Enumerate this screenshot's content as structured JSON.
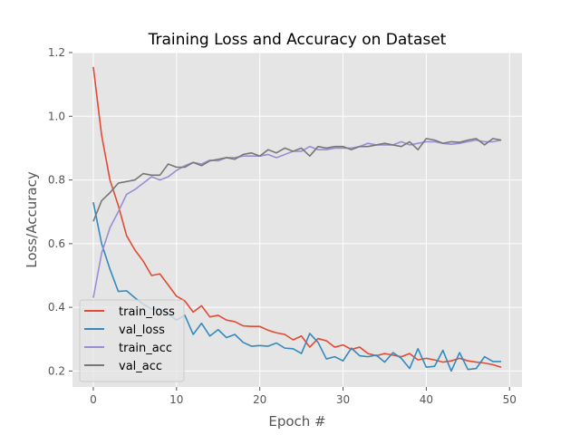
{
  "chart_data": {
    "type": "line",
    "title": "Training Loss and Accuracy on Dataset",
    "xlabel": "Epoch #",
    "ylabel": "Loss/Accuracy",
    "xlim": [
      -2.5,
      51.5
    ],
    "ylim": [
      0.15,
      1.2
    ],
    "xticks": [
      0,
      10,
      20,
      30,
      40,
      50
    ],
    "yticks": [
      0.2,
      0.4,
      0.6,
      0.8,
      1.0,
      1.2
    ],
    "xtick_labels": [
      "0",
      "10",
      "20",
      "30",
      "40",
      "50"
    ],
    "ytick_labels": [
      "0.2",
      "0.4",
      "0.6",
      "0.8",
      "1.0",
      "1.2"
    ],
    "grid": true,
    "legend_position": "lower-left",
    "x": [
      0,
      1,
      2,
      3,
      4,
      5,
      6,
      7,
      8,
      9,
      10,
      11,
      12,
      13,
      14,
      15,
      16,
      17,
      18,
      19,
      20,
      21,
      22,
      23,
      24,
      25,
      26,
      27,
      28,
      29,
      30,
      31,
      32,
      33,
      34,
      35,
      36,
      37,
      38,
      39,
      40,
      41,
      42,
      43,
      44,
      45,
      46,
      47,
      48,
      49
    ],
    "series": [
      {
        "name": "train_loss",
        "color": "#e24a33",
        "values": [
          1.155,
          0.94,
          0.8,
          0.72,
          0.625,
          0.58,
          0.545,
          0.5,
          0.505,
          0.47,
          0.435,
          0.42,
          0.385,
          0.405,
          0.37,
          0.375,
          0.36,
          0.355,
          0.342,
          0.34,
          0.34,
          0.328,
          0.32,
          0.315,
          0.298,
          0.31,
          0.275,
          0.302,
          0.295,
          0.275,
          0.282,
          0.268,
          0.275,
          0.255,
          0.248,
          0.255,
          0.25,
          0.245,
          0.255,
          0.235,
          0.24,
          0.235,
          0.228,
          0.232,
          0.24,
          0.232,
          0.228,
          0.225,
          0.22,
          0.212
        ]
      },
      {
        "name": "val_loss",
        "color": "#348abd",
        "values": [
          0.73,
          0.6,
          0.52,
          0.45,
          0.452,
          0.43,
          0.41,
          0.395,
          0.395,
          0.38,
          0.36,
          0.375,
          0.315,
          0.35,
          0.31,
          0.33,
          0.305,
          0.315,
          0.29,
          0.278,
          0.28,
          0.278,
          0.288,
          0.272,
          0.27,
          0.255,
          0.318,
          0.29,
          0.238,
          0.245,
          0.232,
          0.272,
          0.248,
          0.245,
          0.25,
          0.228,
          0.258,
          0.24,
          0.208,
          0.27,
          0.212,
          0.215,
          0.265,
          0.2,
          0.258,
          0.205,
          0.208,
          0.245,
          0.23,
          0.23
        ]
      },
      {
        "name": "train_acc",
        "color": "#988ed5",
        "values": [
          0.43,
          0.57,
          0.65,
          0.7,
          0.755,
          0.77,
          0.79,
          0.81,
          0.8,
          0.81,
          0.83,
          0.845,
          0.855,
          0.85,
          0.862,
          0.86,
          0.87,
          0.87,
          0.875,
          0.875,
          0.875,
          0.88,
          0.87,
          0.88,
          0.89,
          0.89,
          0.905,
          0.895,
          0.895,
          0.9,
          0.9,
          0.9,
          0.905,
          0.915,
          0.91,
          0.91,
          0.91,
          0.92,
          0.91,
          0.915,
          0.92,
          0.92,
          0.915,
          0.912,
          0.915,
          0.92,
          0.925,
          0.92,
          0.92,
          0.925
        ]
      },
      {
        "name": "val_acc",
        "color": "#777777",
        "values": [
          0.67,
          0.735,
          0.76,
          0.79,
          0.795,
          0.8,
          0.82,
          0.815,
          0.815,
          0.85,
          0.84,
          0.84,
          0.855,
          0.845,
          0.86,
          0.865,
          0.87,
          0.865,
          0.88,
          0.885,
          0.875,
          0.895,
          0.885,
          0.9,
          0.89,
          0.9,
          0.875,
          0.905,
          0.9,
          0.905,
          0.905,
          0.895,
          0.905,
          0.905,
          0.91,
          0.915,
          0.91,
          0.905,
          0.92,
          0.895,
          0.93,
          0.925,
          0.915,
          0.92,
          0.918,
          0.925,
          0.93,
          0.91,
          0.93,
          0.925
        ]
      }
    ]
  }
}
